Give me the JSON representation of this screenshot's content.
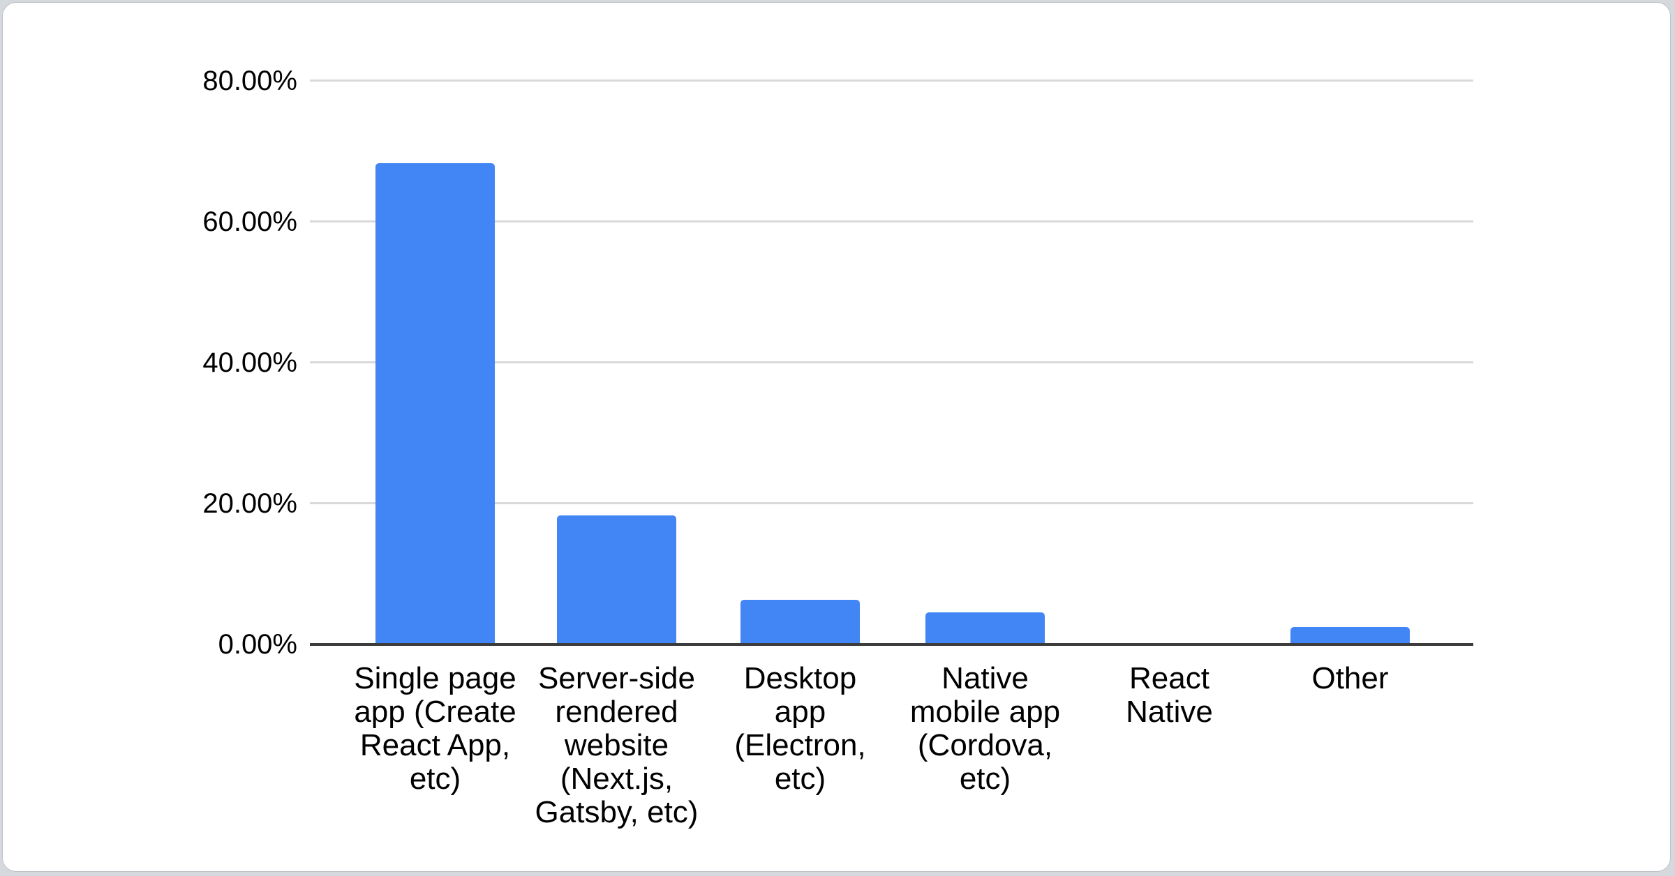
{
  "page": {
    "background_color": "#d5d8dc",
    "card_background_color": "#ffffff",
    "card_border_color": "#bfc3c8"
  },
  "chart_data": {
    "type": "bar",
    "title": "",
    "categories": [
      "Single page app (Create React App, etc)",
      "Server-side rendered website (Next.js, Gatsby, etc)",
      "Desktop app (Electron, etc)",
      "Native mobile app (Cordova, etc)",
      "React Native",
      "Other"
    ],
    "category_label_lines": [
      [
        "Single page",
        "app (Create",
        "React App,",
        "etc)"
      ],
      [
        "Server-side",
        "rendered",
        "website",
        "(Next.js,",
        "Gatsby, etc)"
      ],
      [
        "Desktop",
        "app",
        "(Electron,",
        "etc)"
      ],
      [
        "Native",
        "mobile app",
        "(Cordova,",
        "etc)"
      ],
      [
        "React",
        "Native"
      ],
      [
        "Other"
      ]
    ],
    "values": [
      68.3,
      18.3,
      6.3,
      4.6,
      0,
      2.5
    ],
    "value_unit": "%",
    "y_ticks": [
      "0.00%",
      "20.00%",
      "40.00%",
      "60.00%",
      "80.00%"
    ],
    "ylim": [
      0,
      80
    ],
    "xlabel": "",
    "ylabel": "",
    "grid": true,
    "legend": "none",
    "bar_color": "#4285f4",
    "gridline_color": "#d9d9d9",
    "axis_line_color": "#3c3c3c",
    "label_color": "#000000"
  }
}
